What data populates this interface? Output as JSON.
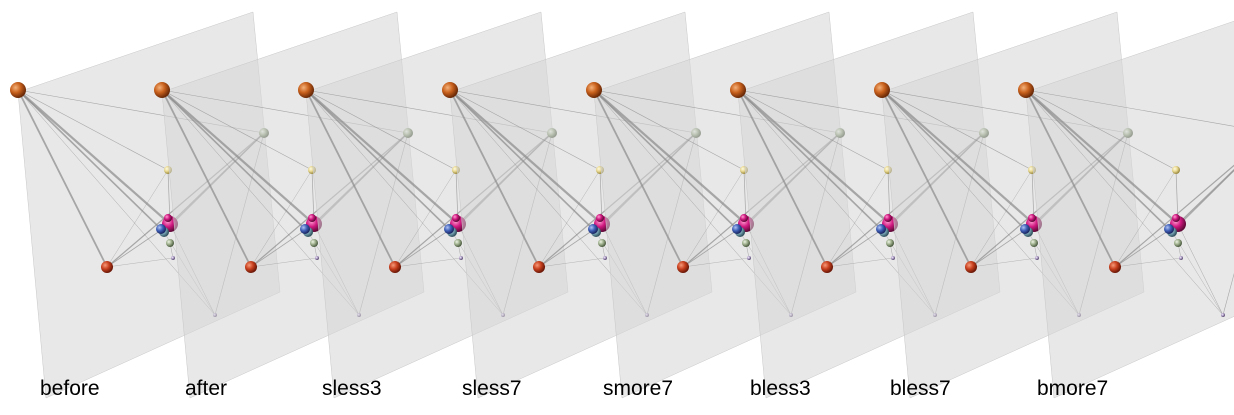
{
  "panels": [
    {
      "label": "before"
    },
    {
      "label": "after"
    },
    {
      "label": "sless3"
    },
    {
      "label": "sless7"
    },
    {
      "label": "smore7"
    },
    {
      "label": "bless3"
    },
    {
      "label": "bless7"
    },
    {
      "label": "bmore7"
    }
  ]
}
